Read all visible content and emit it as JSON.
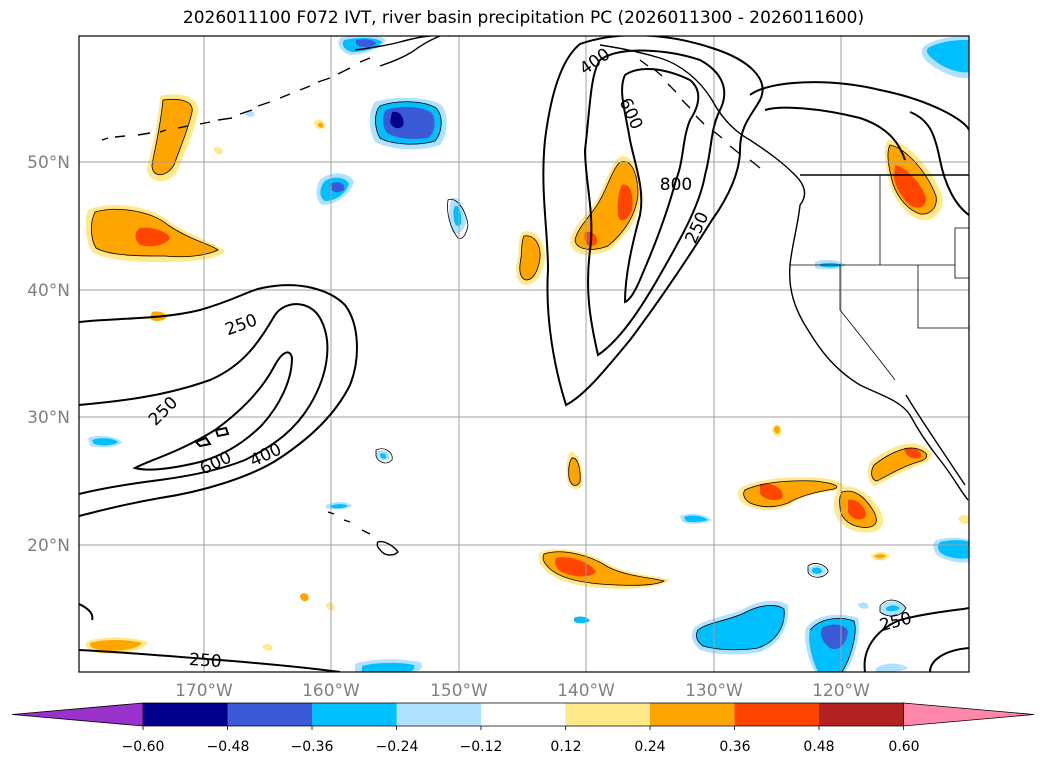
{
  "title": "2026011100 F072 IVT, river basin precipitation PC (2026011300 - 2026011600)",
  "map": {
    "lat_labels": [
      "50°N",
      "40°N",
      "30°N",
      "20°N"
    ],
    "lon_labels": [
      "170°W",
      "160°W",
      "150°W",
      "140°W",
      "130°W",
      "120°W"
    ],
    "gridlines": true,
    "ivt_contour_labels": [
      "250",
      "250",
      "600",
      "400",
      "400",
      "600",
      "800",
      "250",
      "250",
      "250"
    ]
  },
  "colorbar": {
    "ticks": [
      "−0.60",
      "−0.48",
      "−0.36",
      "−0.24",
      "−0.12",
      "0.12",
      "0.24",
      "0.36",
      "0.48",
      "0.60"
    ],
    "colors": [
      "#9932cc",
      "#00008b",
      "#3b5bd6",
      "#00bfff",
      "#b0e2ff",
      "#ffffff",
      "#ffe98a",
      "#ffa500",
      "#ff4500",
      "#b22222",
      "#ff88aa"
    ],
    "extend": "both"
  }
}
